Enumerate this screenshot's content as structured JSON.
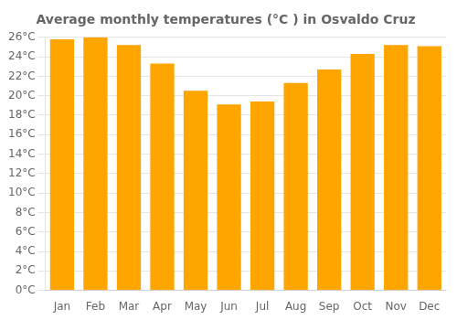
{
  "chart_data": {
    "type": "bar",
    "title": "Average monthly temperatures (°C ) in Osvaldo Cruz",
    "categories": [
      "Jan",
      "Feb",
      "Mar",
      "Apr",
      "May",
      "Jun",
      "Jul",
      "Aug",
      "Sep",
      "Oct",
      "Nov",
      "Dec"
    ],
    "values": [
      25.8,
      26.0,
      25.2,
      23.3,
      20.5,
      19.1,
      19.4,
      21.3,
      22.7,
      24.3,
      25.2,
      25.1
    ],
    "color": "#FFA500",
    "ylim": [
      0,
      26
    ],
    "yticks": [
      {
        "value": 0,
        "label": "0°C"
      },
      {
        "value": 2,
        "label": "2°C"
      },
      {
        "value": 4,
        "label": "4°C"
      },
      {
        "value": 6,
        "label": "6°C"
      },
      {
        "value": 8,
        "label": "8°C"
      },
      {
        "value": 10,
        "label": "10°C"
      },
      {
        "value": 12,
        "label": "12°C"
      },
      {
        "value": 14,
        "label": "14°C"
      },
      {
        "value": 16,
        "label": "16°C"
      },
      {
        "value": 18,
        "label": "18°C"
      },
      {
        "value": 20,
        "label": "20°C"
      },
      {
        "value": 22,
        "label": "22°C"
      },
      {
        "value": 24,
        "label": "24°C"
      },
      {
        "value": 26,
        "label": "26°C"
      }
    ],
    "grid": true
  }
}
